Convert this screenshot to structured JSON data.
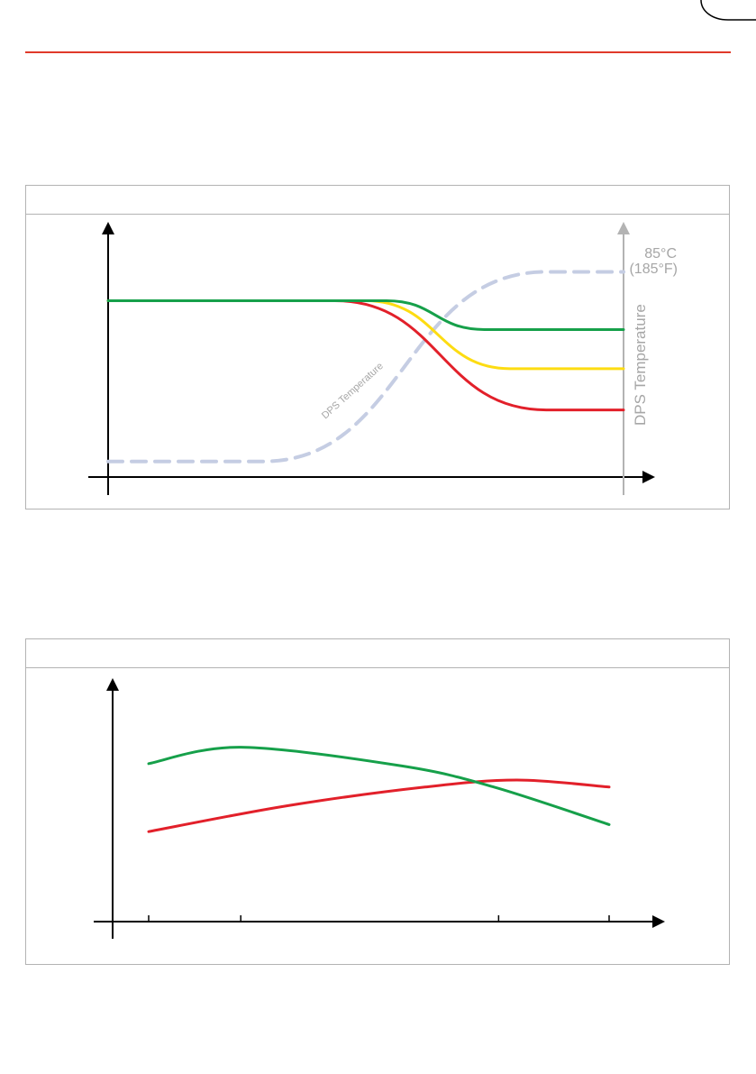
{
  "chart_data": [
    {
      "type": "line",
      "title": "",
      "xlabel": "",
      "ylabel": "",
      "annotations": {
        "temperature_curve_label": "DPS Temperature",
        "right_axis_label": "DPS Temperature",
        "right_axis_top_celsius": "85°C",
        "right_axis_top_fahrenheit": "(185°F)"
      },
      "colors": {
        "green": "#16a04a",
        "yellow": "#fddc12",
        "red": "#e2202a",
        "temperature": "#c5cde3",
        "right_axis": "#b3b3b3"
      },
      "series": [
        {
          "key": "green",
          "x": [
            0,
            0.54,
            0.73,
            1.0
          ],
          "y": [
            0.86,
            0.86,
            0.72,
            0.72
          ]
        },
        {
          "key": "yellow",
          "x": [
            0,
            0.5,
            0.78,
            1.0
          ],
          "y": [
            0.86,
            0.86,
            0.53,
            0.53
          ]
        },
        {
          "key": "red",
          "x": [
            0,
            0.44,
            0.85,
            1.0
          ],
          "y": [
            0.86,
            0.86,
            0.33,
            0.33
          ]
        },
        {
          "key": "temperature",
          "x": [
            0,
            0.3,
            0.85,
            1.0
          ],
          "y": [
            0.08,
            0.08,
            1.0,
            1.0
          ]
        }
      ],
      "xlim": [
        0,
        1
      ],
      "ylim": [
        0,
        1.1
      ]
    },
    {
      "type": "line",
      "title": "",
      "xlabel": "",
      "ylabel": "",
      "colors": {
        "green": "#16a04a",
        "red": "#e2202a"
      },
      "x_ticks": [
        0.0,
        0.2,
        0.76,
        1.0
      ],
      "series": [
        {
          "key": "green",
          "x": [
            0.0,
            0.2,
            0.55,
            0.75,
            1.0
          ],
          "y": [
            0.67,
            0.74,
            0.66,
            0.57,
            0.41
          ]
        },
        {
          "key": "red",
          "x": [
            0.0,
            0.3,
            0.6,
            0.8,
            1.0
          ],
          "y": [
            0.38,
            0.49,
            0.57,
            0.6,
            0.57
          ]
        }
      ],
      "xlim": [
        0,
        1
      ],
      "ylim": [
        0,
        1
      ]
    }
  ]
}
